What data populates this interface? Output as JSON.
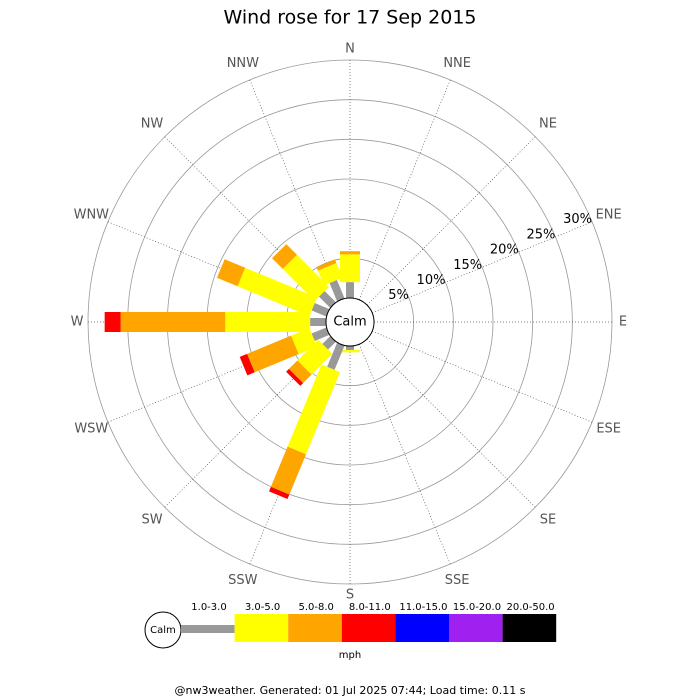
{
  "chart_data": {
    "type": "wind-rose",
    "title": "Wind rose for 17 Sep 2015",
    "center_label": "Calm",
    "unit_label": "mph",
    "footer": "@nw3weather. Generated: 01 Jul 2025 07:44; Load time: 0.11 s",
    "categories": [
      "N",
      "NNE",
      "NE",
      "ENE",
      "E",
      "ESE",
      "SE",
      "SSE",
      "S",
      "SSW",
      "SW",
      "WSW",
      "W",
      "WNW",
      "NW",
      "NNW"
    ],
    "rlim": [
      0,
      30
    ],
    "rticks": [
      {
        "value": 5,
        "label": "5%"
      },
      {
        "value": 10,
        "label": "10%"
      },
      {
        "value": 15,
        "label": "15%"
      },
      {
        "value": 20,
        "label": "20%"
      },
      {
        "value": 25,
        "label": "25%"
      },
      {
        "value": 30,
        "label": "30%"
      }
    ],
    "series": [
      {
        "name": "1.0-3.0",
        "color": "#999999",
        "values": [
          2,
          0,
          0,
          0,
          0,
          0,
          0,
          0,
          0.5,
          3.3,
          1.4,
          2,
          2,
          2,
          2,
          2.5
        ]
      },
      {
        "name": "3.0-5.0",
        "color": "#ffff00",
        "values": [
          3.5,
          0,
          0,
          0,
          0,
          0,
          0,
          0,
          0.3,
          11.2,
          3.7,
          2.5,
          10.7,
          9.8,
          5.7,
          2
        ]
      },
      {
        "name": "5.0-8.0",
        "color": "#ffa500",
        "values": [
          0.4,
          0,
          0,
          0,
          0,
          0,
          0,
          0,
          0,
          5.5,
          1.5,
          6,
          13.2,
          2.8,
          1.9,
          0.5
        ]
      },
      {
        "name": "8.0-11.0",
        "color": "#ff0000",
        "values": [
          0,
          0,
          0,
          0,
          0,
          0,
          0,
          0,
          0,
          0.6,
          0.5,
          1,
          2,
          0,
          0,
          0
        ]
      },
      {
        "name": "11.0-15.0",
        "color": "#0000ff",
        "values": [
          0,
          0,
          0,
          0,
          0,
          0,
          0,
          0,
          0,
          0,
          0,
          0,
          0,
          0,
          0,
          0
        ]
      },
      {
        "name": "15.0-20.0",
        "color": "#a020f0",
        "values": [
          0,
          0,
          0,
          0,
          0,
          0,
          0,
          0,
          0,
          0,
          0,
          0,
          0,
          0,
          0,
          0
        ]
      },
      {
        "name": "20.0-50.0",
        "color": "#000000",
        "values": [
          0,
          0,
          0,
          0,
          0,
          0,
          0,
          0,
          0,
          0,
          0,
          0,
          0,
          0,
          0,
          0
        ]
      }
    ]
  }
}
